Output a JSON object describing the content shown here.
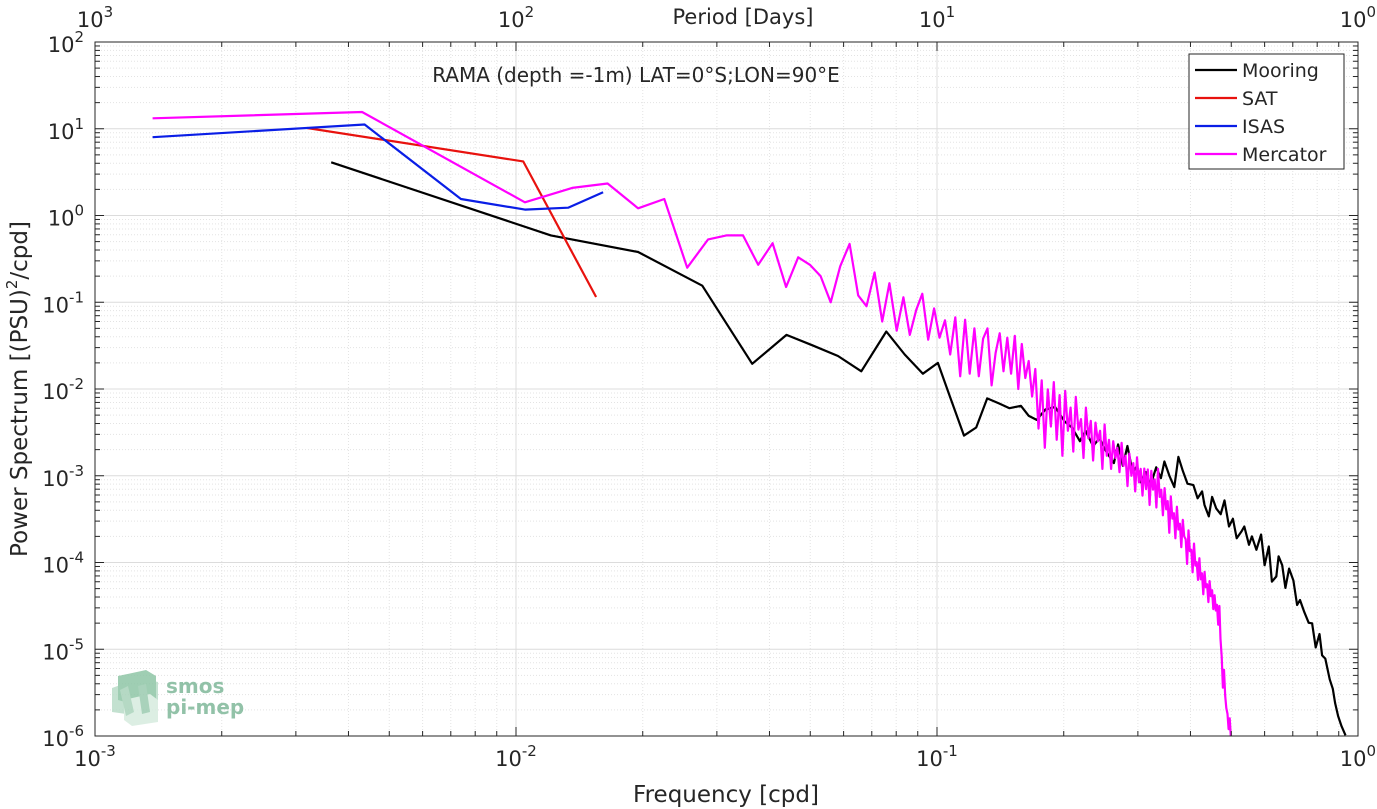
{
  "chart_data": {
    "type": "line",
    "title": "RAMA (depth =-1m) LAT=0°S;LON=90°E",
    "xlabel": "Frequency [cpd]",
    "ylabel": "Power Spectrum [(PSU)",
    "ylabel_sup": "2",
    "ylabel_tail": "/cpd]",
    "top_xlabel": "Period [Days]",
    "x_scale": "log",
    "y_scale": "log",
    "xlim": [
      0.001,
      1
    ],
    "ylim": [
      1e-06,
      100
    ],
    "grid": true,
    "legend_position": "top-right",
    "x_ticks": [
      {
        "value": 0.001,
        "base": "10",
        "exp": "-3"
      },
      {
        "value": 0.01,
        "base": "10",
        "exp": "-2"
      },
      {
        "value": 0.1,
        "base": "10",
        "exp": "-1"
      },
      {
        "value": 1,
        "base": "10",
        "exp": "0"
      }
    ],
    "top_ticks": [
      {
        "value": 0.001,
        "base": "10",
        "exp": "3"
      },
      {
        "value": 0.01,
        "base": "10",
        "exp": "2"
      },
      {
        "value": 0.1,
        "base": "10",
        "exp": "1"
      },
      {
        "value": 1,
        "base": "10",
        "exp": "0"
      }
    ],
    "y_ticks": [
      {
        "value": 100,
        "base": "10",
        "exp": "2"
      },
      {
        "value": 10,
        "base": "10",
        "exp": "1"
      },
      {
        "value": 1,
        "base": "10",
        "exp": "0"
      },
      {
        "value": 0.1,
        "base": "10",
        "exp": "-1"
      },
      {
        "value": 0.01,
        "base": "10",
        "exp": "-2"
      },
      {
        "value": 0.001,
        "base": "10",
        "exp": "-3"
      },
      {
        "value": 0.0001,
        "base": "10",
        "exp": "-4"
      },
      {
        "value": 1e-05,
        "base": "10",
        "exp": "-5"
      },
      {
        "value": 1e-06,
        "base": "10",
        "exp": "-6"
      }
    ],
    "series": [
      {
        "name": "Mooring",
        "color": "#000000",
        "x": [
          0.00364,
          0.0121,
          0.0195,
          0.0277,
          0.0364,
          0.0439,
          0.0505,
          0.0582,
          0.0661,
          0.0758,
          0.0838,
          0.0926,
          0.1005,
          0.1075,
          0.1159,
          0.1239,
          0.1316,
          0.1405,
          0.1487,
          0.1582,
          0.1652,
          0.1725,
          0.1809,
          0.1908,
          0.2012,
          0.2092,
          0.2185,
          0.2253,
          0.2349,
          0.2431,
          0.2524,
          0.2632,
          0.2692,
          0.2764,
          0.2833,
          0.2916,
          0.2988,
          0.3044,
          0.3135,
          0.3213,
          0.3316,
          0.3402,
          0.3469,
          0.3565,
          0.3661,
          0.3744,
          0.3831,
          0.3936,
          0.4065,
          0.4159,
          0.4263,
          0.4319,
          0.4421,
          0.4502,
          0.4605,
          0.4719,
          0.4819,
          0.4939,
          0.5046,
          0.5152,
          0.5293,
          0.5369,
          0.5509,
          0.5598,
          0.5737,
          0.5887,
          0.6001,
          0.6138,
          0.6245,
          0.6397,
          0.6477,
          0.6606,
          0.6722,
          0.6859,
          0.7023,
          0.7169,
          0.7282,
          0.7457,
          0.7636,
          0.7781,
          0.7934,
          0.8103,
          0.8217,
          0.8363,
          0.8566,
          0.8711,
          0.8822,
          0.8967,
          0.9137,
          0.9339
        ],
        "y": [
          4.1,
          0.59,
          0.38,
          0.155,
          0.0195,
          0.042,
          0.032,
          0.024,
          0.016,
          0.046,
          0.025,
          0.015,
          0.02,
          0.008,
          0.0029,
          0.0036,
          0.0078,
          0.0068,
          0.006,
          0.0064,
          0.0049,
          0.0044,
          0.0058,
          0.0062,
          0.0042,
          0.0036,
          0.0025,
          0.0033,
          0.0022,
          0.0027,
          0.0019,
          0.0014,
          0.0023,
          0.0013,
          0.0022,
          0.0011,
          0.0013,
          0.00084,
          0.0011,
          0.00077,
          0.00125,
          0.00094,
          0.00146,
          0.001,
          0.00074,
          0.00165,
          0.00116,
          0.00081,
          0.00078,
          0.00055,
          0.00066,
          0.00046,
          0.00034,
          0.00057,
          0.00042,
          0.00036,
          0.00052,
          0.00026,
          0.00032,
          0.00019,
          0.00023,
          0.00026,
          0.00016,
          0.0002,
          0.00014,
          0.00021,
          9.3e-05,
          0.000153,
          6e-05,
          6.9e-05,
          0.000118,
          9.3e-05,
          5.1e-05,
          8.5e-05,
          6.2e-05,
          3.24e-05,
          3.7e-05,
          2.68e-05,
          2.02e-05,
          1.99e-05,
          1.05e-05,
          1.5e-05,
          8.5e-06,
          7.8e-06,
          4.5e-06,
          3.5e-06,
          2.4e-06,
          1.7e-06,
          1.3e-06,
          1.02e-06
        ]
      },
      {
        "name": "SAT",
        "color": "#e8120e",
        "x": [
          0.00319,
          0.0104,
          0.0155
        ],
        "y": [
          10.2,
          4.2,
          0.115
        ]
      },
      {
        "name": "ISAS",
        "color": "#0a1ee6",
        "x": [
          0.00137,
          0.00437,
          0.0074,
          0.0105,
          0.0133,
          0.0161
        ],
        "y": [
          8.0,
          11.2,
          1.55,
          1.17,
          1.23,
          1.85
        ]
      },
      {
        "name": "Mercator",
        "color": "#ff00ff",
        "x": [
          0.00137,
          0.00431,
          0.0105,
          0.0136,
          0.0165,
          0.0195,
          0.0225,
          0.0255,
          0.0286,
          0.0316,
          0.0346,
          0.0376,
          0.0407,
          0.0438,
          0.0468,
          0.0499,
          0.0529,
          0.0559,
          0.0589,
          0.062,
          0.065,
          0.068,
          0.0711,
          0.0741,
          0.0771,
          0.0802,
          0.0832,
          0.0862,
          0.0893,
          0.0923,
          0.0953,
          0.0984,
          0.1014,
          0.1045,
          0.1075,
          0.1105,
          0.1135,
          0.1166,
          0.1196,
          0.1227,
          0.1257,
          0.1287,
          0.1318,
          0.1348,
          0.1378,
          0.1409,
          0.1439,
          0.1469,
          0.15,
          0.153,
          0.156,
          0.159,
          0.1621,
          0.1651,
          0.1682,
          0.1712,
          0.1742,
          0.1773,
          0.1803,
          0.1833,
          0.1864,
          0.1894,
          0.1924,
          0.1955,
          0.1985,
          0.2016,
          0.2046,
          0.2076,
          0.2107,
          0.2137,
          0.2167,
          0.2198,
          0.2228,
          0.2258,
          0.2289,
          0.2319,
          0.2349,
          0.238,
          0.241,
          0.244,
          0.2471,
          0.2501,
          0.2531,
          0.2562,
          0.2592,
          0.2622,
          0.2653,
          0.2683,
          0.2713,
          0.2744,
          0.2774,
          0.2804,
          0.2835,
          0.2865,
          0.2895,
          0.2926,
          0.2956,
          0.2986,
          0.3017,
          0.3047,
          0.3077,
          0.3108,
          0.3138,
          0.3168,
          0.3199,
          0.3229,
          0.3259,
          0.329,
          0.332,
          0.335,
          0.3381,
          0.3411,
          0.3441,
          0.3472,
          0.3502,
          0.3532,
          0.3563,
          0.3593,
          0.3623,
          0.3654,
          0.3684,
          0.3714,
          0.3745,
          0.3775,
          0.3805,
          0.3836,
          0.3866,
          0.3896,
          0.3927,
          0.3957,
          0.3987,
          0.4018,
          0.4048,
          0.4078,
          0.4109,
          0.4139,
          0.4169,
          0.42,
          0.423,
          0.426,
          0.4291,
          0.4321,
          0.4351,
          0.4382,
          0.4412,
          0.4442,
          0.4473,
          0.4503,
          0.4533,
          0.4564,
          0.4594,
          0.4624,
          0.4655,
          0.4685,
          0.4715,
          0.4746,
          0.4776,
          0.4806,
          0.4837,
          0.4867,
          0.4897,
          0.4928,
          0.4958,
          0.4988
        ],
        "y": [
          13.2,
          15.6,
          1.42,
          2.08,
          2.34,
          1.21,
          1.55,
          0.25,
          0.53,
          0.59,
          0.59,
          0.27,
          0.48,
          0.15,
          0.33,
          0.27,
          0.2,
          0.1,
          0.26,
          0.47,
          0.12,
          0.09,
          0.22,
          0.06,
          0.166,
          0.047,
          0.114,
          0.042,
          0.082,
          0.125,
          0.037,
          0.085,
          0.039,
          0.062,
          0.025,
          0.067,
          0.014,
          0.063,
          0.015,
          0.05,
          0.014,
          0.038,
          0.05,
          0.011,
          0.026,
          0.044,
          0.016,
          0.039,
          0.015,
          0.041,
          0.01,
          0.033,
          0.0134,
          0.021,
          0.0082,
          0.017,
          0.0035,
          0.0126,
          0.0021,
          0.0099,
          0.0037,
          0.012,
          0.0026,
          0.0085,
          0.0017,
          0.0095,
          0.0033,
          0.0061,
          0.0019,
          0.0081,
          0.0034,
          0.0045,
          0.0016,
          0.0061,
          0.0027,
          0.0043,
          0.0015,
          0.0041,
          0.0025,
          0.0033,
          0.0012,
          0.0039,
          0.0017,
          0.0026,
          0.0012,
          0.0025,
          0.0016,
          0.0021,
          0.0011,
          0.0024,
          0.0013,
          0.0017,
          0.00076,
          0.0018,
          0.001,
          0.0014,
          0.00066,
          0.00163,
          0.00084,
          0.0012,
          0.00059,
          0.00121,
          0.0007,
          0.00118,
          0.00046,
          0.00114,
          0.00069,
          0.00091,
          0.00043,
          0.0012,
          0.00057,
          0.00069,
          0.00035,
          0.00072,
          0.00041,
          0.00051,
          0.00022,
          0.00058,
          0.00032,
          0.00037,
          0.00019,
          0.00044,
          0.00024,
          0.00028,
          0.00015,
          0.00031,
          0.0002,
          0.000185,
          9.6e-05,
          0.000235,
          0.000135,
          0.00014,
          7.7e-05,
          0.000165,
          9.2e-05,
          0.000101,
          6.3e-05,
          0.000112,
          6.4e-05,
          7.5e-05,
          4.3e-05,
          7.8e-05,
          5.2e-05,
          5.6e-05,
          3.5e-05,
          6.1e-05,
          4.1e-05,
          4.8e-05,
          2.9e-05,
          4.2e-05,
          2.8e-05,
          3.25e-05,
          1.92e-05,
          3.15e-05,
          1.31e-05,
          8.2e-06,
          3.6e-06,
          5.8e-06,
          2.9e-06,
          2.1e-06,
          1.8e-06,
          1.2e-06,
          1.6e-06,
          1e-06
        ]
      }
    ]
  },
  "logo": {
    "line1": "smos",
    "line2": "pi-mep",
    "color": "#7fb89a"
  }
}
